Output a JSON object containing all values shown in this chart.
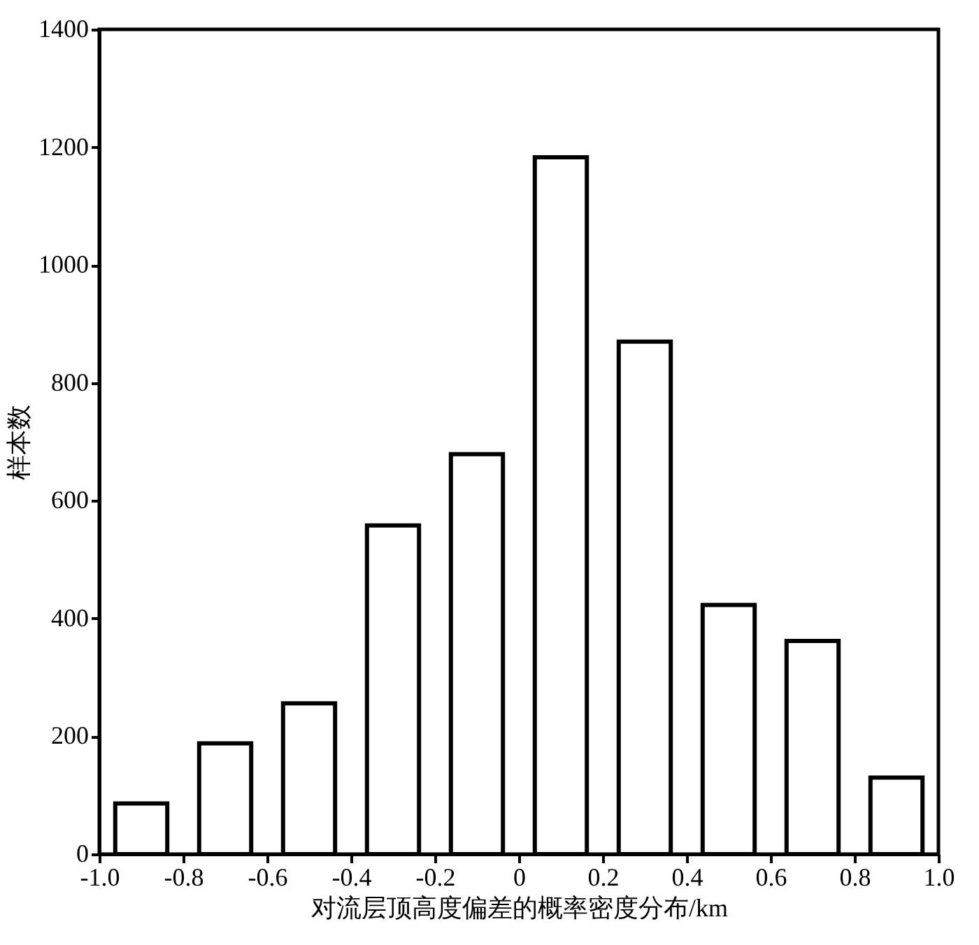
{
  "chart_data": {
    "type": "bar",
    "xlabel": "对流层顶高度偏差的概率密度分布/km",
    "ylabel": "样本数",
    "x": [
      -0.9,
      -0.7,
      -0.5,
      -0.3,
      -0.1,
      0.1,
      0.3,
      0.5,
      0.7,
      0.9
    ],
    "series": [
      {
        "color": "#ffffff",
        "values": [
          86,
          188,
          256,
          558,
          679,
          1183,
          870,
          423,
          362,
          130
        ]
      }
    ],
    "xlim": [
      -1.0,
      1.0
    ],
    "xticks": [
      {
        "value": -1.0,
        "label": "-1.0"
      },
      -0.8,
      -0.6,
      -0.4,
      -0.2,
      0,
      0.2,
      0.4,
      0.6,
      0.8,
      {
        "value": 1.0,
        "label": "1.0"
      }
    ],
    "ylim": [
      0,
      1400
    ],
    "yticks": [
      0,
      200,
      400,
      600,
      800,
      1000,
      1200,
      1400
    ],
    "grid": false
  }
}
